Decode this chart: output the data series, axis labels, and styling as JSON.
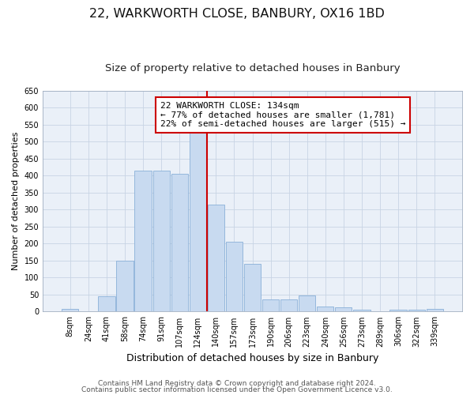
{
  "title": "22, WARKWORTH CLOSE, BANBURY, OX16 1BD",
  "subtitle": "Size of property relative to detached houses in Banbury",
  "xlabel": "Distribution of detached houses by size in Banbury",
  "ylabel": "Number of detached properties",
  "bar_labels": [
    "8sqm",
    "24sqm",
    "41sqm",
    "58sqm",
    "74sqm",
    "91sqm",
    "107sqm",
    "124sqm",
    "140sqm",
    "157sqm",
    "173sqm",
    "190sqm",
    "206sqm",
    "223sqm",
    "240sqm",
    "256sqm",
    "273sqm",
    "289sqm",
    "306sqm",
    "322sqm",
    "339sqm"
  ],
  "bar_values": [
    8,
    0,
    45,
    150,
    415,
    415,
    405,
    530,
    315,
    205,
    140,
    35,
    35,
    48,
    15,
    12,
    5,
    0,
    5,
    6,
    8
  ],
  "bar_color": "#c8daf0",
  "bar_edge_color": "#8ab0d8",
  "vline_color": "#cc0000",
  "annotation_line1": "22 WARKWORTH CLOSE: 134sqm",
  "annotation_line2": "← 77% of detached houses are smaller (1,781)",
  "annotation_line3": "22% of semi-detached houses are larger (515) →",
  "annotation_box_color": "#cc0000",
  "ylim": [
    0,
    650
  ],
  "yticks": [
    0,
    50,
    100,
    150,
    200,
    250,
    300,
    350,
    400,
    450,
    500,
    550,
    600,
    650
  ],
  "footer_line1": "Contains HM Land Registry data © Crown copyright and database right 2024.",
  "footer_line2": "Contains public sector information licensed under the Open Government Licence v3.0.",
  "bg_color": "#ffffff",
  "plot_bg_color": "#eaf0f8",
  "grid_color": "#c8d4e4",
  "title_fontsize": 11.5,
  "subtitle_fontsize": 9.5,
  "xlabel_fontsize": 9,
  "ylabel_fontsize": 8,
  "tick_fontsize": 7,
  "annot_fontsize": 8,
  "footer_fontsize": 6.5
}
